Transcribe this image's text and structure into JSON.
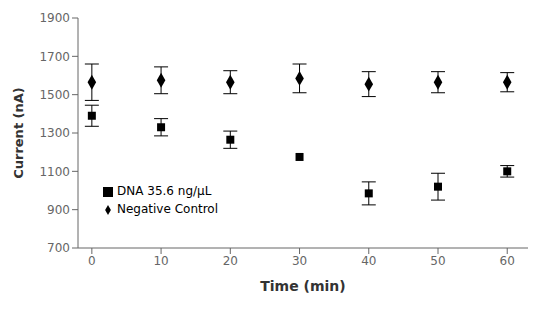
{
  "chart_data": {
    "type": "scatter",
    "xlabel": "Time (min)",
    "ylabel": "Current (nA)",
    "x": [
      0,
      10,
      20,
      30,
      40,
      50,
      60
    ],
    "series": [
      {
        "name": "Negative Control",
        "color": "#000000",
        "marker": "diamond",
        "values": [
          1565,
          1575,
          1565,
          1585,
          1555,
          1565,
          1565
        ],
        "yerr": [
          95,
          70,
          60,
          75,
          65,
          55,
          50
        ]
      },
      {
        "name": "DNA 35.6 ng/μL",
        "color": "#000000",
        "marker": "square",
        "values": [
          1390,
          1330,
          1265,
          1175,
          985,
          1020,
          1100
        ],
        "yerr": [
          55,
          45,
          45,
          0,
          60,
          70,
          30
        ]
      }
    ],
    "xlim": [
      -2,
      63
    ],
    "xticks": [
      0,
      10,
      20,
      30,
      40,
      50,
      60
    ],
    "ylim": [
      700,
      1900
    ],
    "yticks": [
      700,
      900,
      1100,
      1300,
      1500,
      1700,
      1900
    ],
    "grid": false,
    "legend": "lower left"
  }
}
